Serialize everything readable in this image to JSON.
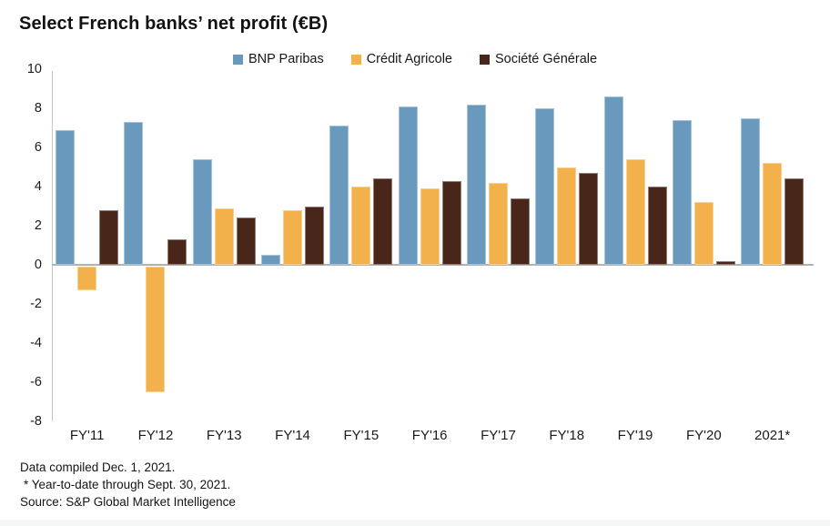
{
  "title": "Select French banks’ net profit (€B)",
  "chart_data": {
    "type": "bar",
    "title": "Select French banks’ net profit (€B)",
    "categories": [
      "FY'11",
      "FY'12",
      "FY'13",
      "FY'14",
      "FY'15",
      "FY'16",
      "FY'17",
      "FY'18",
      "FY'19",
      "FY'20",
      "2021*"
    ],
    "series": [
      {
        "name": "BNP Paribas",
        "color": "#6999bc",
        "values": [
          6.9,
          7.3,
          5.4,
          0.5,
          7.1,
          8.1,
          8.2,
          8.0,
          8.6,
          7.4,
          7.5
        ]
      },
      {
        "name": "Crédit Agricole",
        "color": "#f2b14a",
        "values": [
          -1.2,
          -6.4,
          2.9,
          2.8,
          4.0,
          3.9,
          4.2,
          5.0,
          5.4,
          3.2,
          5.2
        ]
      },
      {
        "name": "Société Générale",
        "color": "#48271a",
        "values": [
          2.8,
          1.3,
          2.4,
          3.0,
          4.4,
          4.3,
          3.4,
          4.7,
          4.0,
          0.2,
          4.4
        ]
      }
    ],
    "xlabel": "",
    "ylabel": "",
    "ylim": [
      -8,
      10
    ],
    "ytick_step": 2,
    "grid": false,
    "legend_position": "top-center",
    "axis_color": "#c4c4c4",
    "zero_line_color": "#b2b2b2"
  },
  "footnotes": [
    "Data compiled Dec. 1, 2021.",
    "* Year-to-date through Sept. 30, 2021.",
    "Source: S&P Global Market Intelligence"
  ]
}
